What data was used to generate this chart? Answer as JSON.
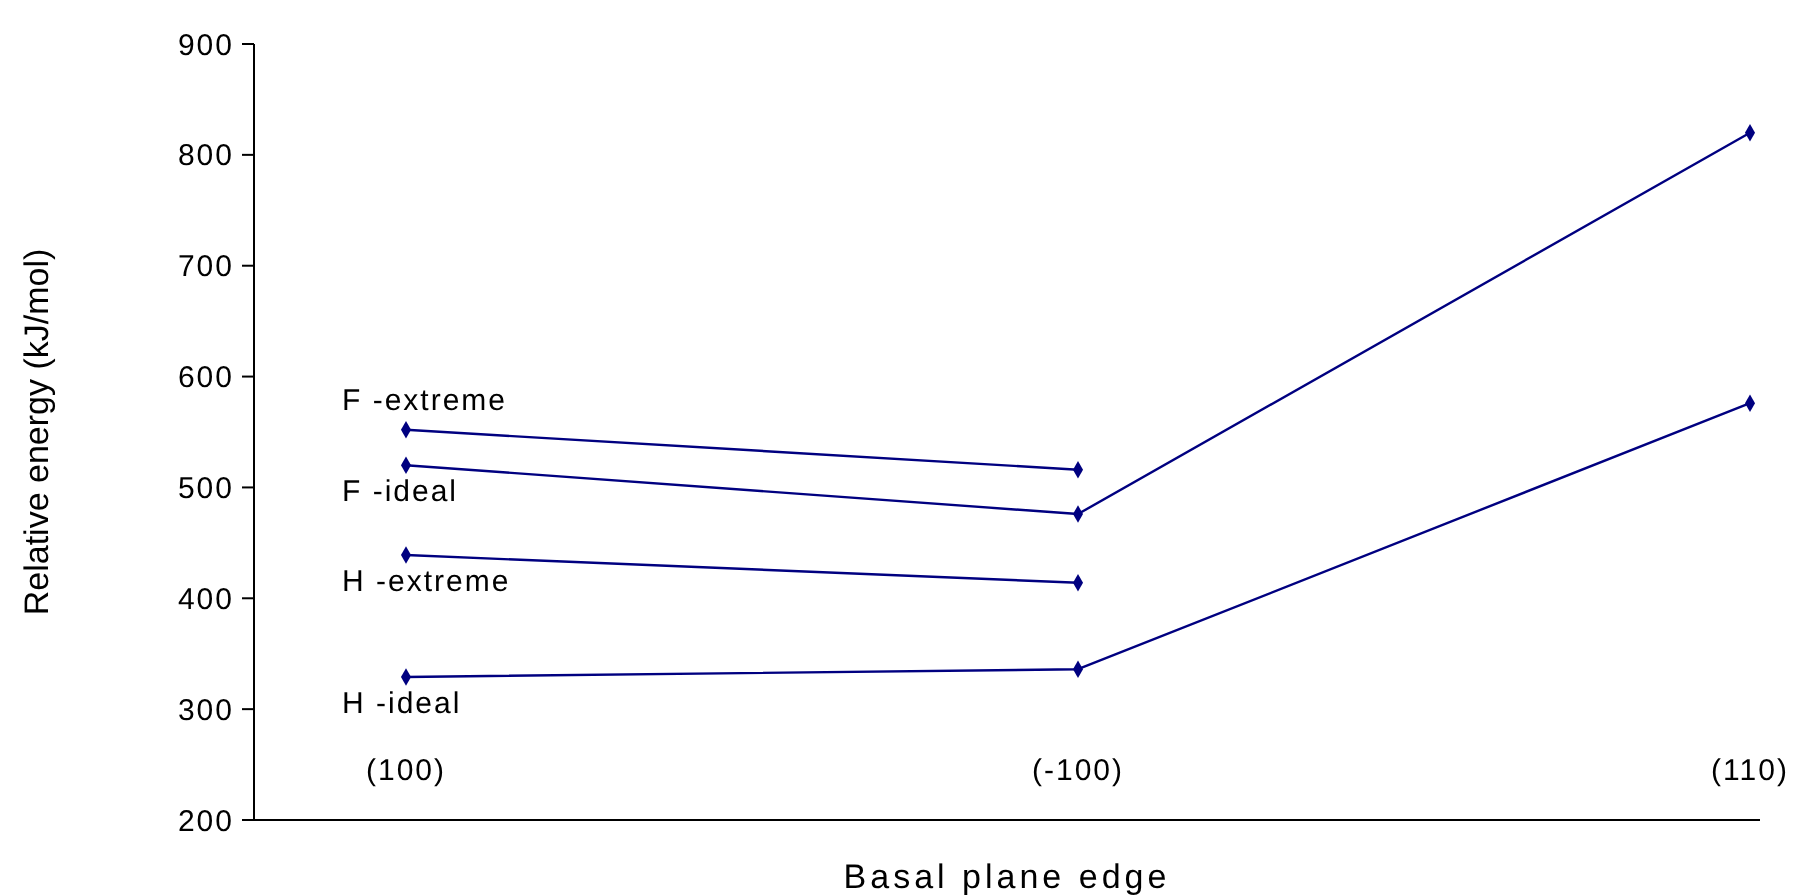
{
  "chart_data": {
    "type": "line",
    "xlabel": "Basal plane edge",
    "ylabel": "Relative energy (kJ/mol)",
    "categories": [
      "(100)",
      "(-100)",
      "(110)"
    ],
    "ylim": [
      200,
      900
    ],
    "yticks": [
      200,
      300,
      400,
      500,
      600,
      700,
      800,
      900
    ],
    "grid": false,
    "marker": "diamond",
    "line_style": "solid",
    "series": [
      {
        "name": "F -extreme",
        "color": "#000080",
        "values": [
          552,
          516,
          null
        ]
      },
      {
        "name": "F -ideal",
        "color": "#000080",
        "values": [
          520,
          476,
          820
        ]
      },
      {
        "name": "H -extreme",
        "color": "#000080",
        "values": [
          439,
          414,
          null
        ]
      },
      {
        "name": "H -ideal",
        "color": "#000080",
        "values": [
          329,
          336,
          576
        ]
      }
    ]
  }
}
